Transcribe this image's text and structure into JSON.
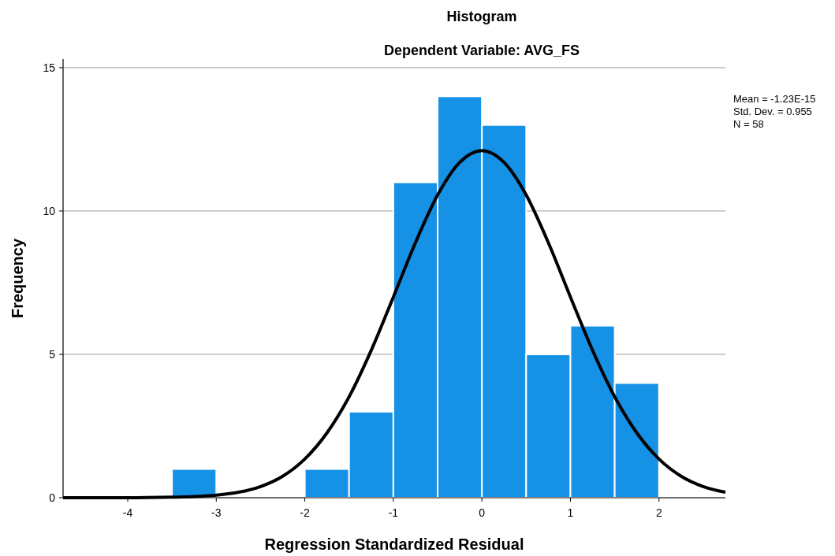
{
  "chart_data": {
    "type": "histogram",
    "title": "Histogram",
    "subtitle": "Dependent Variable: AVG_FS",
    "xlabel": "Regression Standardized Residual",
    "ylabel": "Frequency",
    "bins": [
      -3.5,
      -3,
      -2.5,
      -2,
      -1.5,
      -1,
      -0.5,
      0,
      0.5,
      1,
      1.5,
      2
    ],
    "values": [
      1,
      0,
      0,
      1,
      3,
      11,
      14,
      13,
      5,
      6,
      4
    ],
    "color": "#1591e6",
    "series": [
      {
        "type": "line",
        "color": "#000000",
        "x": [
          -4.73,
          -4,
          -3.5,
          -3.25,
          -3,
          -2.75,
          -2.5,
          -2.25,
          -2,
          -1.75,
          -1.5,
          -1.25,
          -1,
          -0.75,
          -0.5,
          -0.25,
          0,
          0.25,
          0.5,
          0.75,
          1,
          1.25,
          1.5,
          1.75,
          2,
          2.25,
          2.5,
          2.75
        ],
        "values": [
          0,
          0,
          0.02,
          0.04,
          0.09,
          0.19,
          0.39,
          0.75,
          1.35,
          2.26,
          3.52,
          5.14,
          7.0,
          8.9,
          10.56,
          11.7,
          12.11,
          11.7,
          10.56,
          8.9,
          7.0,
          5.14,
          3.52,
          2.26,
          1.35,
          0.75,
          0.39,
          0.19
        ]
      }
    ],
    "xlim": [
      -4.73,
      2.75
    ],
    "xticks": [
      -4,
      -3,
      -2,
      -1,
      0,
      1,
      2
    ],
    "ylim": [
      0,
      15.3
    ],
    "yticks": [
      0,
      5,
      10,
      15
    ],
    "grid": "y",
    "line_style": "solid",
    "annotations": [
      "Mean = -1.23E-15",
      "Std. Dev. = 0.955",
      "N = 58"
    ]
  }
}
